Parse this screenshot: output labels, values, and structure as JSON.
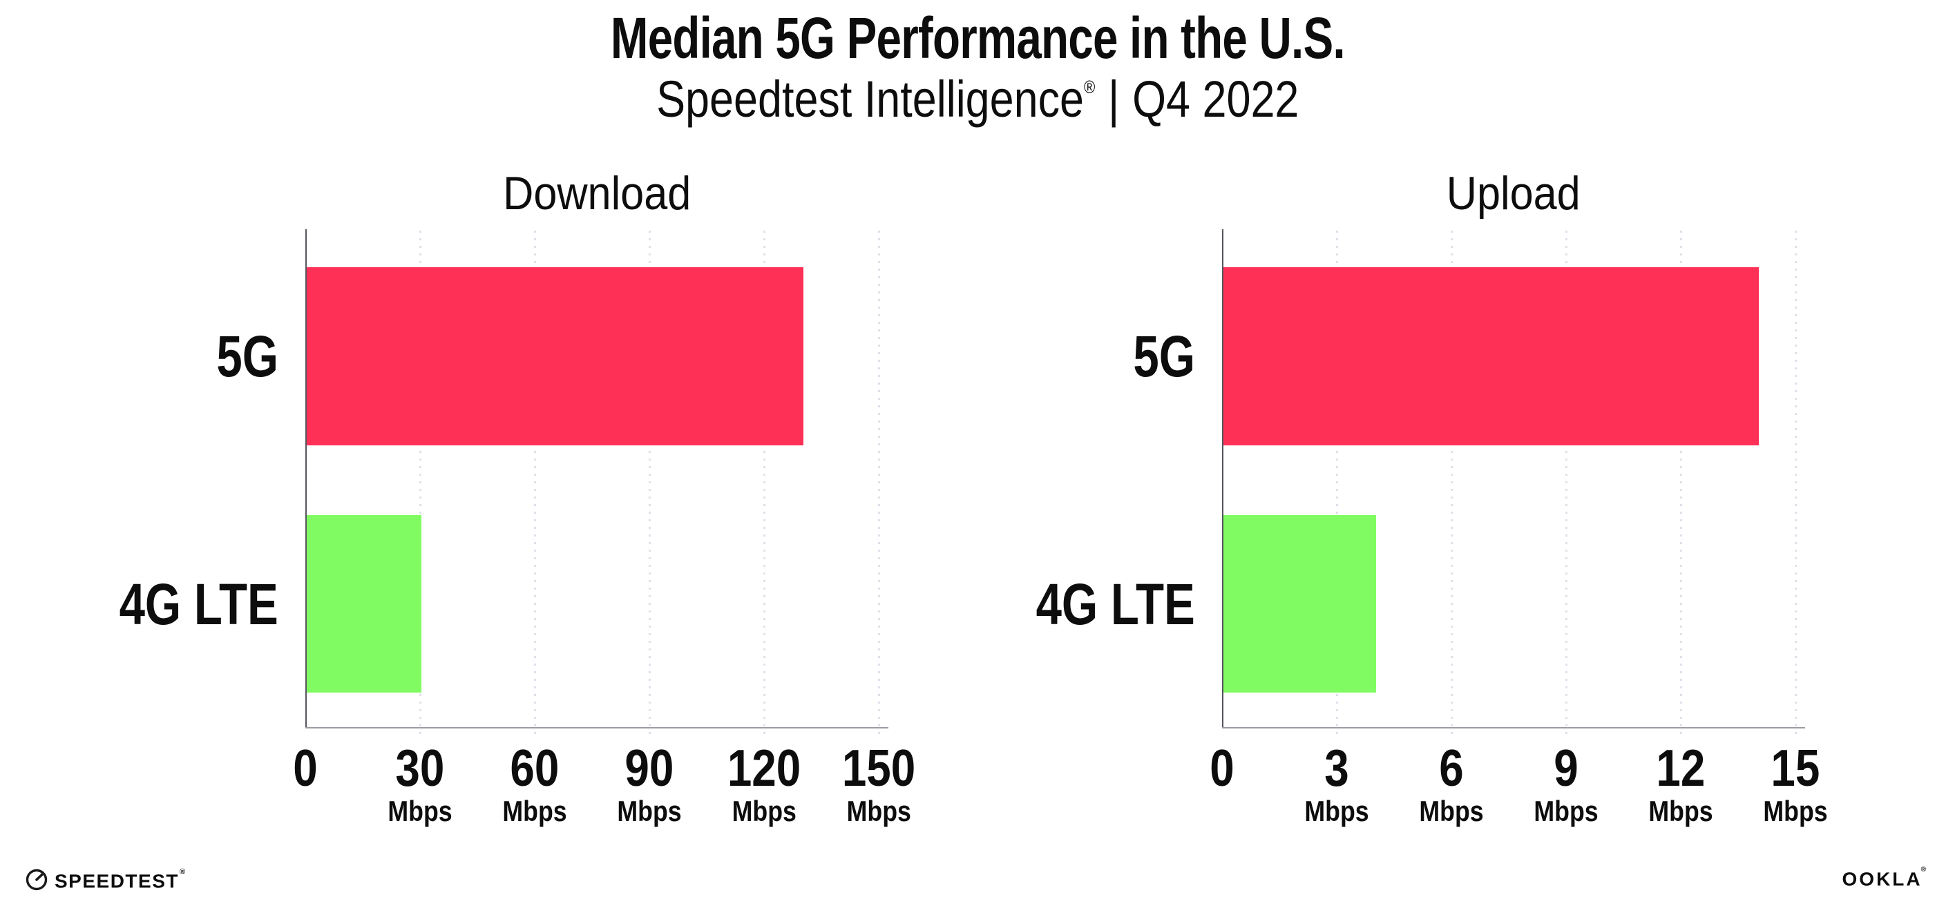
{
  "title": "Median 5G Performance in the U.S.",
  "subtitle": {
    "brand": "Speedtest Intelligence",
    "registered_mark": "®",
    "separator": "|",
    "period": "Q4 2022"
  },
  "colors": {
    "bar_5g": "#ff3056",
    "bar_4g_lte": "#80fb61",
    "gridline": "#e0e0eb",
    "x_axis": "#9b9ba3",
    "y_axis": "#55555d",
    "text": "#0d0d0d"
  },
  "chart_data": [
    {
      "type": "bar",
      "orientation": "horizontal",
      "title": "Download",
      "categories": [
        "5G",
        "4G LTE"
      ],
      "values": [
        130,
        30
      ],
      "unit": "Mbps",
      "xlim": [
        0,
        150
      ],
      "ticks": [
        0,
        30,
        60,
        90,
        120,
        150
      ],
      "grid": "dotted-vertical",
      "legend": "none",
      "bar_colors": [
        "#ff3056",
        "#80fb61"
      ]
    },
    {
      "type": "bar",
      "orientation": "horizontal",
      "title": "Upload",
      "categories": [
        "5G",
        "4G LTE"
      ],
      "values": [
        14,
        4
      ],
      "unit": "Mbps",
      "xlim": [
        0,
        15
      ],
      "ticks": [
        0,
        3,
        6,
        9,
        12,
        15
      ],
      "grid": "dotted-vertical",
      "legend": "none",
      "bar_colors": [
        "#ff3056",
        "#80fb61"
      ]
    }
  ],
  "footer": {
    "speedtest": {
      "label": "SPEEDTEST",
      "mark": "®",
      "icon": "speedtest-gauge-icon"
    },
    "ookla": {
      "label": "OOKLA",
      "mark": "®"
    }
  }
}
